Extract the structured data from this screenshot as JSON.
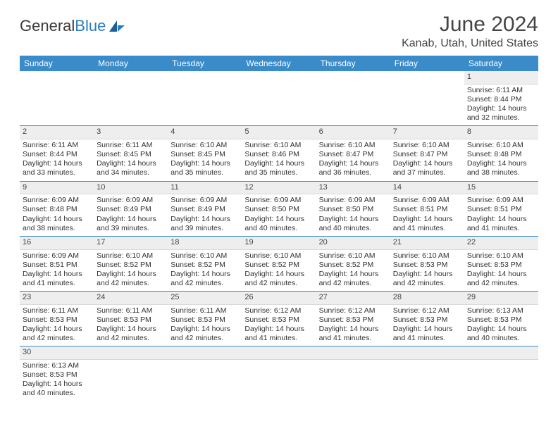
{
  "brand": {
    "part1": "General",
    "part2": "Blue"
  },
  "header": {
    "month": "June 2024",
    "location": "Kanab, Utah, United States"
  },
  "style": {
    "header_bg": "#3a8bc9",
    "header_fg": "#ffffff",
    "daynum_bg": "#eeeeee",
    "border_color": "#3a8bc9",
    "page_bg": "#ffffff",
    "text_color": "#333333",
    "month_fontsize": 30,
    "location_fontsize": 16,
    "dow_fontsize": 12,
    "cell_fontsize": 10.5
  },
  "days_of_week": [
    "Sunday",
    "Monday",
    "Tuesday",
    "Wednesday",
    "Thursday",
    "Friday",
    "Saturday"
  ],
  "weeks": [
    [
      null,
      null,
      null,
      null,
      null,
      null,
      {
        "n": "1",
        "sr": "Sunrise: 6:11 AM",
        "ss": "Sunset: 8:44 PM",
        "dl": "Daylight: 14 hours and 32 minutes."
      }
    ],
    [
      {
        "n": "2",
        "sr": "Sunrise: 6:11 AM",
        "ss": "Sunset: 8:44 PM",
        "dl": "Daylight: 14 hours and 33 minutes."
      },
      {
        "n": "3",
        "sr": "Sunrise: 6:11 AM",
        "ss": "Sunset: 8:45 PM",
        "dl": "Daylight: 14 hours and 34 minutes."
      },
      {
        "n": "4",
        "sr": "Sunrise: 6:10 AM",
        "ss": "Sunset: 8:45 PM",
        "dl": "Daylight: 14 hours and 35 minutes."
      },
      {
        "n": "5",
        "sr": "Sunrise: 6:10 AM",
        "ss": "Sunset: 8:46 PM",
        "dl": "Daylight: 14 hours and 35 minutes."
      },
      {
        "n": "6",
        "sr": "Sunrise: 6:10 AM",
        "ss": "Sunset: 8:47 PM",
        "dl": "Daylight: 14 hours and 36 minutes."
      },
      {
        "n": "7",
        "sr": "Sunrise: 6:10 AM",
        "ss": "Sunset: 8:47 PM",
        "dl": "Daylight: 14 hours and 37 minutes."
      },
      {
        "n": "8",
        "sr": "Sunrise: 6:10 AM",
        "ss": "Sunset: 8:48 PM",
        "dl": "Daylight: 14 hours and 38 minutes."
      }
    ],
    [
      {
        "n": "9",
        "sr": "Sunrise: 6:09 AM",
        "ss": "Sunset: 8:48 PM",
        "dl": "Daylight: 14 hours and 38 minutes."
      },
      {
        "n": "10",
        "sr": "Sunrise: 6:09 AM",
        "ss": "Sunset: 8:49 PM",
        "dl": "Daylight: 14 hours and 39 minutes."
      },
      {
        "n": "11",
        "sr": "Sunrise: 6:09 AM",
        "ss": "Sunset: 8:49 PM",
        "dl": "Daylight: 14 hours and 39 minutes."
      },
      {
        "n": "12",
        "sr": "Sunrise: 6:09 AM",
        "ss": "Sunset: 8:50 PM",
        "dl": "Daylight: 14 hours and 40 minutes."
      },
      {
        "n": "13",
        "sr": "Sunrise: 6:09 AM",
        "ss": "Sunset: 8:50 PM",
        "dl": "Daylight: 14 hours and 40 minutes."
      },
      {
        "n": "14",
        "sr": "Sunrise: 6:09 AM",
        "ss": "Sunset: 8:51 PM",
        "dl": "Daylight: 14 hours and 41 minutes."
      },
      {
        "n": "15",
        "sr": "Sunrise: 6:09 AM",
        "ss": "Sunset: 8:51 PM",
        "dl": "Daylight: 14 hours and 41 minutes."
      }
    ],
    [
      {
        "n": "16",
        "sr": "Sunrise: 6:09 AM",
        "ss": "Sunset: 8:51 PM",
        "dl": "Daylight: 14 hours and 41 minutes."
      },
      {
        "n": "17",
        "sr": "Sunrise: 6:10 AM",
        "ss": "Sunset: 8:52 PM",
        "dl": "Daylight: 14 hours and 42 minutes."
      },
      {
        "n": "18",
        "sr": "Sunrise: 6:10 AM",
        "ss": "Sunset: 8:52 PM",
        "dl": "Daylight: 14 hours and 42 minutes."
      },
      {
        "n": "19",
        "sr": "Sunrise: 6:10 AM",
        "ss": "Sunset: 8:52 PM",
        "dl": "Daylight: 14 hours and 42 minutes."
      },
      {
        "n": "20",
        "sr": "Sunrise: 6:10 AM",
        "ss": "Sunset: 8:52 PM",
        "dl": "Daylight: 14 hours and 42 minutes."
      },
      {
        "n": "21",
        "sr": "Sunrise: 6:10 AM",
        "ss": "Sunset: 8:53 PM",
        "dl": "Daylight: 14 hours and 42 minutes."
      },
      {
        "n": "22",
        "sr": "Sunrise: 6:10 AM",
        "ss": "Sunset: 8:53 PM",
        "dl": "Daylight: 14 hours and 42 minutes."
      }
    ],
    [
      {
        "n": "23",
        "sr": "Sunrise: 6:11 AM",
        "ss": "Sunset: 8:53 PM",
        "dl": "Daylight: 14 hours and 42 minutes."
      },
      {
        "n": "24",
        "sr": "Sunrise: 6:11 AM",
        "ss": "Sunset: 8:53 PM",
        "dl": "Daylight: 14 hours and 42 minutes."
      },
      {
        "n": "25",
        "sr": "Sunrise: 6:11 AM",
        "ss": "Sunset: 8:53 PM",
        "dl": "Daylight: 14 hours and 42 minutes."
      },
      {
        "n": "26",
        "sr": "Sunrise: 6:12 AM",
        "ss": "Sunset: 8:53 PM",
        "dl": "Daylight: 14 hours and 41 minutes."
      },
      {
        "n": "27",
        "sr": "Sunrise: 6:12 AM",
        "ss": "Sunset: 8:53 PM",
        "dl": "Daylight: 14 hours and 41 minutes."
      },
      {
        "n": "28",
        "sr": "Sunrise: 6:12 AM",
        "ss": "Sunset: 8:53 PM",
        "dl": "Daylight: 14 hours and 41 minutes."
      },
      {
        "n": "29",
        "sr": "Sunrise: 6:13 AM",
        "ss": "Sunset: 8:53 PM",
        "dl": "Daylight: 14 hours and 40 minutes."
      }
    ],
    [
      {
        "n": "30",
        "sr": "Sunrise: 6:13 AM",
        "ss": "Sunset: 8:53 PM",
        "dl": "Daylight: 14 hours and 40 minutes."
      },
      null,
      null,
      null,
      null,
      null,
      null
    ]
  ]
}
